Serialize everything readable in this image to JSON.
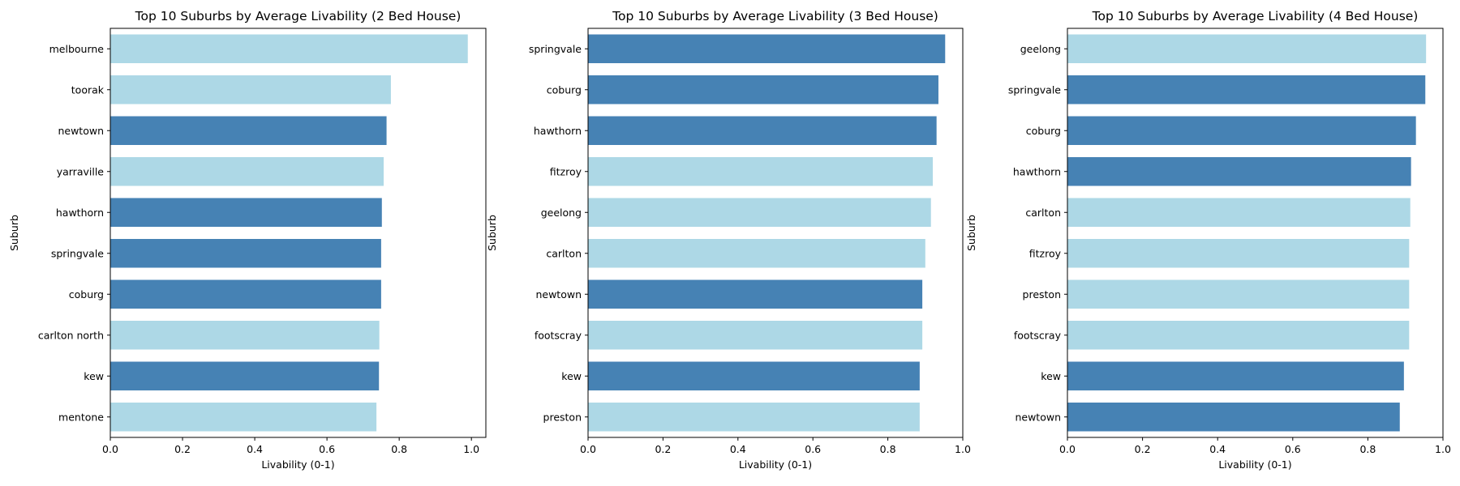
{
  "chart_data": [
    {
      "type": "bar",
      "orientation": "horizontal",
      "title": "Top 10 Suburbs by Average Livability (2 Bed House)",
      "xlabel": "Livability (0-1)",
      "ylabel": "Suburb",
      "xlim": [
        0,
        1.04
      ],
      "xticks": [
        "0.0",
        "0.2",
        "0.4",
        "0.6",
        "0.8",
        "1.0"
      ],
      "grid": false,
      "categories": [
        "melbourne",
        "toorak",
        "newtown",
        "yarraville",
        "hawthorn",
        "springvale",
        "coburg",
        "carlton north",
        "kew",
        "mentone"
      ],
      "values": [
        0.99,
        0.777,
        0.765,
        0.757,
        0.752,
        0.75,
        0.75,
        0.745,
        0.744,
        0.737
      ],
      "bar_colors": [
        "#add8e6",
        "#add8e6",
        "#4682b4",
        "#add8e6",
        "#4682b4",
        "#4682b4",
        "#4682b4",
        "#add8e6",
        "#4682b4",
        "#add8e6"
      ]
    },
    {
      "type": "bar",
      "orientation": "horizontal",
      "title": "Top 10 Suburbs by Average Livability (3 Bed House)",
      "xlabel": "Livability (0-1)",
      "ylabel": "Suburb",
      "xlim": [
        0,
        1.0
      ],
      "xticks": [
        "0.0",
        "0.2",
        "0.4",
        "0.6",
        "0.8",
        "1.0"
      ],
      "grid": false,
      "categories": [
        "springvale",
        "coburg",
        "hawthorn",
        "fitzroy",
        "geelong",
        "carlton",
        "newtown",
        "footscray",
        "kew",
        "preston"
      ],
      "values": [
        0.953,
        0.935,
        0.93,
        0.92,
        0.915,
        0.9,
        0.892,
        0.892,
        0.885,
        0.885
      ],
      "bar_colors": [
        "#4682b4",
        "#4682b4",
        "#4682b4",
        "#add8e6",
        "#add8e6",
        "#add8e6",
        "#4682b4",
        "#add8e6",
        "#4682b4",
        "#add8e6"
      ]
    },
    {
      "type": "bar",
      "orientation": "horizontal",
      "title": "Top 10 Suburbs by Average Livability (4 Bed House)",
      "xlabel": "Livability (0-1)",
      "ylabel": "Suburb",
      "xlim": [
        0,
        1.0
      ],
      "xticks": [
        "0.0",
        "0.2",
        "0.4",
        "0.6",
        "0.8",
        "1.0"
      ],
      "grid": false,
      "categories": [
        "geelong",
        "springvale",
        "coburg",
        "hawthorn",
        "carlton",
        "fitzroy",
        "preston",
        "footscray",
        "kew",
        "newtown"
      ],
      "values": [
        0.955,
        0.953,
        0.928,
        0.915,
        0.913,
        0.91,
        0.91,
        0.91,
        0.896,
        0.885
      ],
      "bar_colors": [
        "#add8e6",
        "#4682b4",
        "#4682b4",
        "#4682b4",
        "#add8e6",
        "#add8e6",
        "#add8e6",
        "#add8e6",
        "#4682b4",
        "#4682b4"
      ]
    }
  ]
}
